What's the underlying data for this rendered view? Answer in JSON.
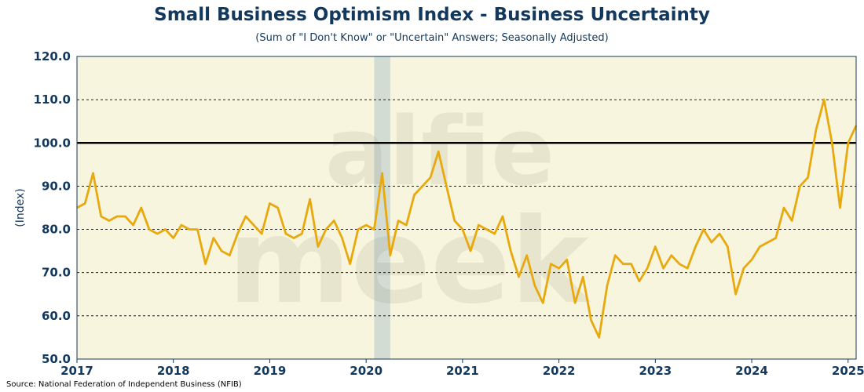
{
  "chart_data": {
    "type": "line",
    "title": "Small Business Optimism Index - Business Uncertainty",
    "subtitle": "(Sum of \"I Don't Know\" or \"Uncertain\" Answers; Seasonally Adjusted)",
    "xlabel": "",
    "ylabel": "(Index)",
    "source": "Source: National Federation of Independent Business (NFIB)",
    "ylim": [
      50,
      120
    ],
    "yticks": [
      "50.0",
      "60.0",
      "70.0",
      "80.0",
      "90.0",
      "100.0",
      "110.0",
      "120.0"
    ],
    "ytick_values": [
      50,
      60,
      70,
      80,
      90,
      100,
      110,
      120
    ],
    "xticks": [
      "2017",
      "2018",
      "2019",
      "2020",
      "2021",
      "2022",
      "2023",
      "2024",
      "2025"
    ],
    "xtick_values": [
      2017,
      2018,
      2019,
      2020,
      2021,
      2022,
      2023,
      2024,
      2025
    ],
    "xlim": [
      "2017-01",
      "2025-02"
    ],
    "reference_line": 100,
    "recession_band": [
      "2020-02",
      "2020-04"
    ],
    "grid": "horizontal dashed",
    "series": [
      {
        "name": "",
        "x": [
          "2017-01",
          "2017-02",
          "2017-03",
          "2017-04",
          "2017-05",
          "2017-06",
          "2017-07",
          "2017-08",
          "2017-09",
          "2017-10",
          "2017-11",
          "2017-12",
          "2018-01",
          "2018-02",
          "2018-03",
          "2018-04",
          "2018-05",
          "2018-06",
          "2018-07",
          "2018-08",
          "2018-09",
          "2018-10",
          "2018-11",
          "2018-12",
          "2019-01",
          "2019-02",
          "2019-03",
          "2019-04",
          "2019-05",
          "2019-06",
          "2019-07",
          "2019-08",
          "2019-09",
          "2019-10",
          "2019-11",
          "2019-12",
          "2020-01",
          "2020-02",
          "2020-03",
          "2020-04",
          "2020-05",
          "2020-06",
          "2020-07",
          "2020-08",
          "2020-09",
          "2020-10",
          "2020-11",
          "2020-12",
          "2021-01",
          "2021-02",
          "2021-03",
          "2021-04",
          "2021-05",
          "2021-06",
          "2021-07",
          "2021-08",
          "2021-09",
          "2021-10",
          "2021-11",
          "2021-12",
          "2022-01",
          "2022-02",
          "2022-03",
          "2022-04",
          "2022-05",
          "2022-06",
          "2022-07",
          "2022-08",
          "2022-09",
          "2022-10",
          "2022-11",
          "2022-12",
          "2023-01",
          "2023-02",
          "2023-03",
          "2023-04",
          "2023-05",
          "2023-06",
          "2023-07",
          "2023-08",
          "2023-09",
          "2023-10",
          "2023-11",
          "2023-12",
          "2024-01",
          "2024-02",
          "2024-03",
          "2024-04",
          "2024-05",
          "2024-06",
          "2024-07",
          "2024-08",
          "2024-09",
          "2024-10",
          "2024-11",
          "2024-12",
          "2025-01",
          "2025-02"
        ],
        "values": [
          85,
          86,
          93,
          83,
          82,
          83,
          83,
          81,
          85,
          80,
          79,
          80,
          78,
          81,
          80,
          80,
          72,
          78,
          75,
          74,
          79,
          83,
          81,
          79,
          86,
          85,
          79,
          78,
          79,
          87,
          76,
          80,
          82,
          78,
          72,
          80,
          81,
          80,
          93,
          74,
          82,
          81,
          88,
          90,
          92,
          98,
          90,
          82,
          80,
          75,
          81,
          80,
          79,
          83,
          75,
          69,
          74,
          67,
          63,
          72,
          71,
          73,
          63,
          69,
          59,
          55,
          67,
          74,
          72,
          72,
          68,
          71,
          76,
          71,
          74,
          72,
          71,
          76,
          80,
          77,
          79,
          76,
          65,
          71,
          73,
          76,
          77,
          78,
          85,
          82,
          90,
          92,
          103,
          110,
          100,
          85,
          100,
          104
        ],
        "color": "#e8a90e"
      }
    ],
    "colors": {
      "plot_background": "#f8f5df",
      "recession_band": "#d3dcd3",
      "axis_text": "#12385e",
      "line": "#e8a90e",
      "reference_line": "#000000"
    }
  }
}
